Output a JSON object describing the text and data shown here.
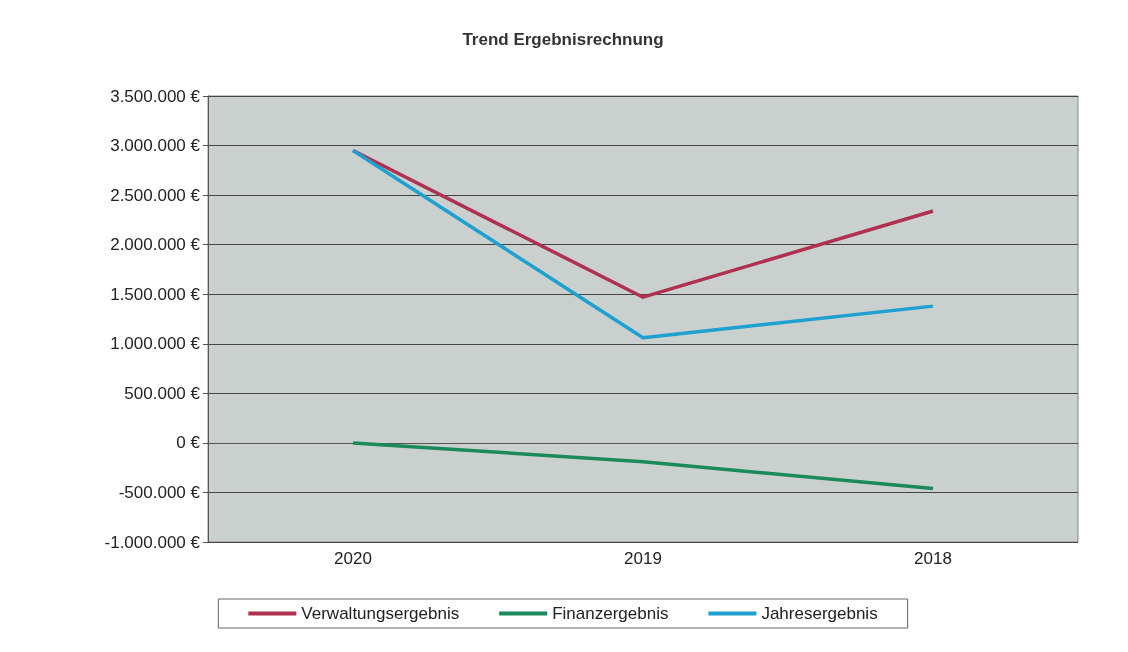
{
  "chart_data": {
    "type": "line",
    "title": "Trend Ergebnisrechnung",
    "categories": [
      "2020",
      "2019",
      "2018"
    ],
    "series": [
      {
        "name": "Verwaltungsergebnis",
        "color": "#b03050",
        "values": [
          2950000,
          1470000,
          2340000
        ]
      },
      {
        "name": "Finanzergebnis",
        "color": "#1a8a5a",
        "values": [
          0,
          -190000,
          -460000
        ]
      },
      {
        "name": "Jahresergebnis",
        "color": "#1ea0d0",
        "values": [
          2950000,
          1060000,
          1380000
        ]
      }
    ],
    "ylim": [
      -1000000,
      3500000
    ],
    "yticks": [
      {
        "value": -1000000,
        "label": "-1.000.000 €"
      },
      {
        "value": -500000,
        "label": "-500.000 €"
      },
      {
        "value": 0,
        "label": "0 €"
      },
      {
        "value": 500000,
        "label": "500.000 €"
      },
      {
        "value": 1000000,
        "label": "1.000.000 €"
      },
      {
        "value": 1500000,
        "label": "1.500.000 €"
      },
      {
        "value": 2000000,
        "label": "2.000.000 €"
      },
      {
        "value": 2500000,
        "label": "2.500.000 €"
      },
      {
        "value": 3000000,
        "label": "3.000.000 €"
      },
      {
        "value": 3500000,
        "label": "3.500.000 €"
      }
    ],
    "grid": "y",
    "legend": "bottom",
    "marker": "none"
  }
}
